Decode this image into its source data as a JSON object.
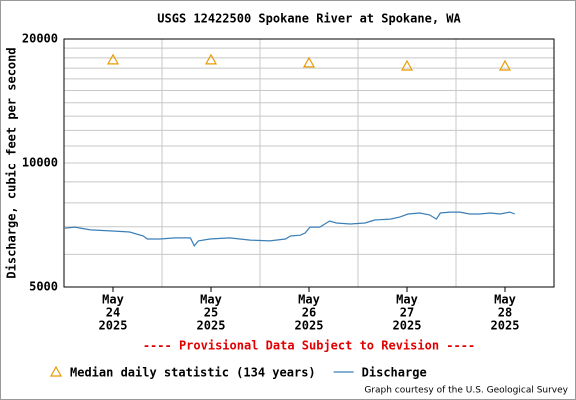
{
  "chart_data": {
    "type": "line",
    "title": "USGS 12422500 Spokane River at Spokane, WA",
    "y_label": "Discharge, cubic feet per second",
    "annotation": "---- Provisional Data Subject to Revision ----",
    "credit": "Graph courtesy of the U.S. Geological Survey",
    "log_y": true,
    "grid": true,
    "xlim": [
      0,
      5
    ],
    "xticks": [
      {
        "value": 0.5,
        "label": [
          "May",
          "24",
          "2025"
        ]
      },
      {
        "value": 1.5,
        "label": [
          "May",
          "25",
          "2025"
        ]
      },
      {
        "value": 2.5,
        "label": [
          "May",
          "26",
          "2025"
        ]
      },
      {
        "value": 3.5,
        "label": [
          "May",
          "27",
          "2025"
        ]
      },
      {
        "value": 4.5,
        "label": [
          "May",
          "28",
          "2025"
        ]
      }
    ],
    "x_gridlines": [
      1,
      2,
      3,
      4
    ],
    "ylim": [
      5000,
      20000
    ],
    "yticks": [
      5000,
      10000,
      20000
    ],
    "y_minor_gridlines": [
      6000,
      7000,
      8000,
      9000,
      11000,
      12000,
      13000,
      14000,
      15000,
      16000,
      17000,
      18000,
      19000
    ],
    "series": [
      {
        "name": "Median daily statistic (134 years)",
        "marker": "triangle",
        "color": "#e89a00",
        "x": [
          0.5,
          1.5,
          2.5,
          3.5,
          4.5
        ],
        "values": [
          17800,
          17800,
          17500,
          17200,
          17200
        ]
      },
      {
        "name": "Discharge",
        "marker": "line",
        "color": "#3a7fb8",
        "x": [
          0.01,
          0.11,
          0.27,
          0.47,
          0.67,
          0.81,
          0.85,
          0.98,
          1.13,
          1.29,
          1.33,
          1.37,
          1.49,
          1.69,
          1.9,
          2.1,
          2.26,
          2.31,
          2.41,
          2.46,
          2.51,
          2.61,
          2.71,
          2.78,
          2.92,
          3.07,
          3.17,
          3.33,
          3.43,
          3.51,
          3.63,
          3.73,
          3.8,
          3.84,
          3.94,
          4.04,
          4.14,
          4.24,
          4.35,
          4.45,
          4.55,
          4.6
        ],
        "values": [
          6950,
          6990,
          6880,
          6840,
          6800,
          6650,
          6540,
          6540,
          6580,
          6580,
          6290,
          6470,
          6540,
          6580,
          6500,
          6470,
          6540,
          6650,
          6680,
          6760,
          6990,
          6990,
          7230,
          7150,
          7110,
          7150,
          7270,
          7310,
          7400,
          7520,
          7560,
          7480,
          7310,
          7560,
          7600,
          7600,
          7520,
          7520,
          7560,
          7520,
          7600,
          7520
        ]
      }
    ]
  }
}
